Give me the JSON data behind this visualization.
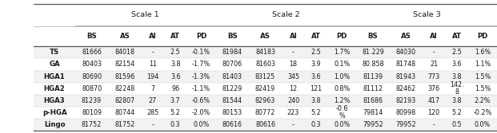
{
  "scale_headers": [
    "Scale 1",
    "Scale 2",
    "Scale 3"
  ],
  "col_headers": [
    "BS",
    "AS",
    "AI",
    "AT",
    "PD",
    "BS",
    "AS",
    "AI",
    "AT",
    "PD",
    "BS",
    "AS",
    "AI",
    "AT",
    "PD"
  ],
  "row_headers": [
    "TS",
    "GA",
    "HGA1",
    "HGA2",
    "HGA3",
    "p-HGA",
    "Lingo"
  ],
  "row_bold": [
    true,
    true,
    true,
    true,
    true,
    true,
    true
  ],
  "rows": [
    [
      "81666",
      "84018",
      "-",
      "2.5",
      "-0.1%",
      "81984",
      "84183",
      "-",
      "2.5",
      "1.7%",
      "81.229",
      "84030",
      "-",
      "2.5",
      "1.6%"
    ],
    [
      "80403",
      "82154",
      "11",
      "3.8",
      "-1.7%",
      "80706",
      "81603",
      "18",
      "3.9",
      "0.1%",
      "80.858",
      "81748",
      "21",
      "3.6",
      "1.1%"
    ],
    [
      "80690",
      "81596",
      "194",
      "3.6",
      "-1.3%",
      "81403",
      "83125",
      "345",
      "3.6",
      "1.0%",
      "81139",
      "81943",
      "773",
      "3.8",
      "1.5%"
    ],
    [
      "80870",
      "82248",
      "7",
      "96",
      "-1.1%",
      "81229",
      "82419",
      "12",
      "121",
      "0.8%",
      "81112",
      "82462",
      "376",
      "142.\n8",
      "1.5%"
    ],
    [
      "81239",
      "82807",
      "27",
      "3.7",
      "-0.6%",
      "81544",
      "82963",
      "240",
      "3.8",
      "1.2%",
      "81686",
      "82193",
      "417",
      "3.8",
      "2.2%"
    ],
    [
      "80109",
      "80744",
      "285",
      "5.2",
      "-2.0%",
      "80153",
      "80772",
      "223",
      "5.2",
      "-0.6\n%",
      "79814",
      "80998",
      "120",
      "5.2",
      "-0.2%"
    ],
    [
      "81752",
      "81752",
      "-",
      "0.3",
      "0.0%",
      "80616",
      "80616",
      "-",
      "0.3",
      "0.0%",
      "79952",
      "79952",
      "-",
      "0.5",
      "0.0%"
    ]
  ],
  "fig_width": 6.21,
  "fig_height": 1.67,
  "dpi": 100,
  "bg_color": "#ffffff",
  "line_color_dark": "#555555",
  "line_color_light": "#aaaaaa",
  "text_color": "#1a1a1a",
  "font_size_data": 5.8,
  "font_size_header": 6.2,
  "font_size_scale": 6.8
}
